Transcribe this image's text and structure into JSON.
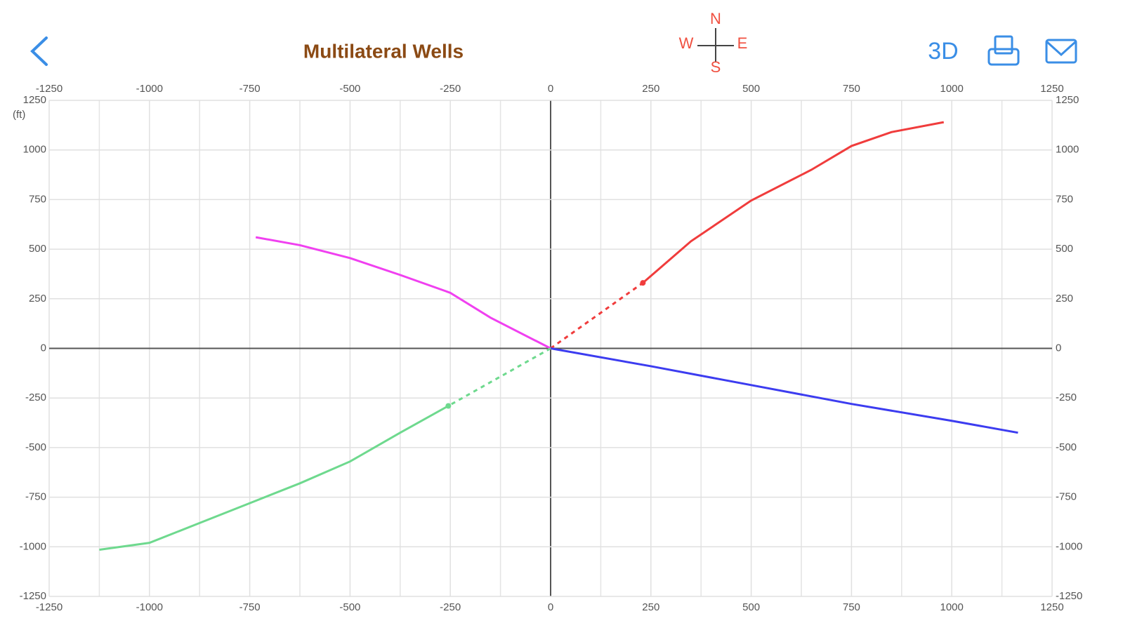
{
  "header": {
    "title": "Multilateral Wells",
    "compass": {
      "n": "N",
      "s": "S",
      "w": "W",
      "e": "E"
    },
    "button_3d": "3D"
  },
  "chart_data": {
    "type": "line",
    "y_label": "(ft)",
    "xlim": [
      -1250,
      1250
    ],
    "ylim": [
      -1250,
      1250
    ],
    "xticks": [
      -1250,
      -1000,
      -750,
      -500,
      -250,
      0,
      250,
      500,
      750,
      1000,
      1250
    ],
    "yticks": [
      -1250,
      -1000,
      -750,
      -500,
      -250,
      0,
      250,
      500,
      750,
      1000,
      1250
    ],
    "xminor": [
      -1125,
      -875,
      -625,
      -375,
      -125,
      125,
      375,
      625,
      875,
      1125
    ],
    "grid": true,
    "series": [
      {
        "color": "#f03c3c",
        "style": "dashed",
        "end_marker": true,
        "x": [
          0,
          230
        ],
        "values": [
          0,
          330
        ]
      },
      {
        "color": "#f03c3c",
        "style": "solid",
        "x": [
          230,
          350,
          500,
          650,
          750,
          850,
          980
        ],
        "values": [
          330,
          540,
          745,
          900,
          1020,
          1090,
          1140
        ]
      },
      {
        "color": "#f040f0",
        "style": "solid",
        "x": [
          0,
          -150,
          -250,
          -375,
          -500,
          -625,
          -735
        ],
        "values": [
          0,
          155,
          280,
          370,
          455,
          520,
          560
        ]
      },
      {
        "color": "#3c3cf0",
        "style": "solid",
        "x": [
          0,
          250,
          500,
          750,
          1000,
          1165
        ],
        "values": [
          0,
          -90,
          -185,
          -280,
          -365,
          -425
        ]
      },
      {
        "color": "#6ed98e",
        "style": "dashed",
        "end_marker": true,
        "x": [
          0,
          -255
        ],
        "values": [
          0,
          -290
        ]
      },
      {
        "color": "#6ed98e",
        "style": "solid",
        "x": [
          -255,
          -375,
          -500,
          -625,
          -750,
          -875,
          -1000,
          -1125
        ],
        "values": [
          -290,
          -425,
          -570,
          -680,
          -780,
          -880,
          -980,
          -1015
        ]
      }
    ]
  }
}
